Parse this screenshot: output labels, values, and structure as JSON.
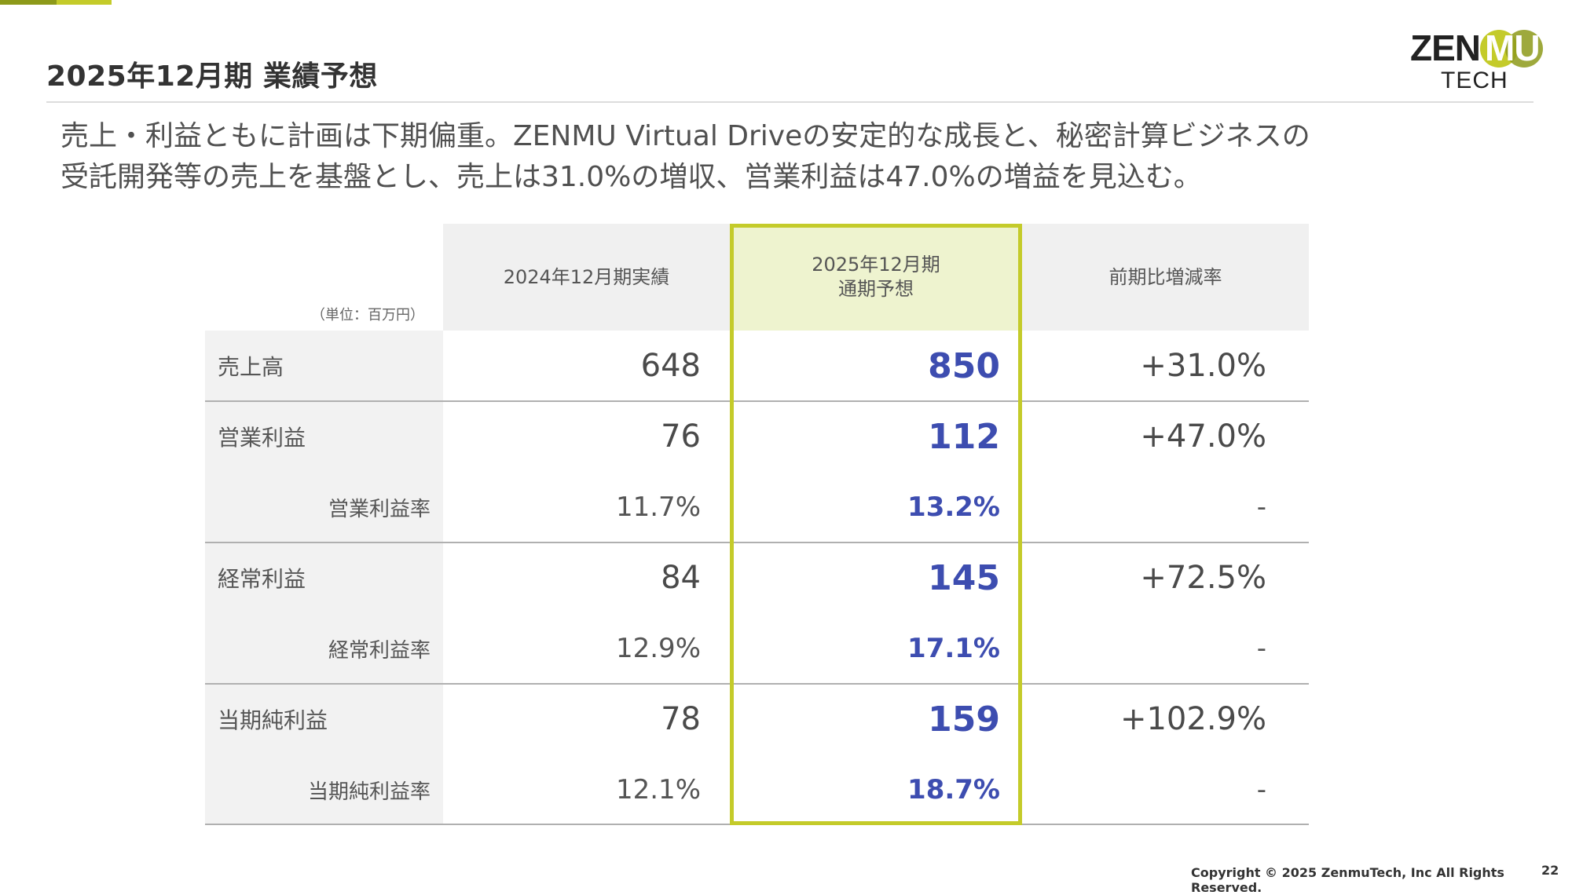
{
  "page": {
    "title": "2025年12月期 業績予想",
    "lead_line1": "売上・利益ともに計画は下期偏重。ZENMU Virtual Driveの安定的な成長と、秘密計算ビジネスの",
    "lead_line2": "受託開発等の売上を基盤とし、売上は31.0%の増収、営業利益は47.0%の増益を見込む。",
    "footer": "Copyright © 2025 ZenmuTech, Inc All Rights Reserved.",
    "page_number": "22"
  },
  "logo": {
    "line1_a": "ZEN",
    "line1_b": "MU",
    "line2": "TECH"
  },
  "table": {
    "unit": "（単位：百万円）",
    "headers": {
      "actual": "2024年12月期実績",
      "forecast_line1": "2025年12月期",
      "forecast_line2": "通期予想",
      "change": "前期比増減率"
    },
    "rows": [
      {
        "label": "売上高",
        "actual": "648",
        "forecast": "850",
        "change": "+31.0%"
      },
      {
        "label": "営業利益",
        "actual": "76",
        "forecast": "112",
        "change": "+47.0%"
      },
      {
        "label": "営業利益率",
        "actual": "11.7%",
        "forecast": "13.2%",
        "change": "-"
      },
      {
        "label": "経常利益",
        "actual": "84",
        "forecast": "145",
        "change": "+72.5%"
      },
      {
        "label": "経常利益率",
        "actual": "12.9%",
        "forecast": "17.1%",
        "change": "-"
      },
      {
        "label": "当期純利益",
        "actual": "78",
        "forecast": "159",
        "change": "+102.9%"
      },
      {
        "label": "当期純利益率",
        "actual": "12.1%",
        "forecast": "18.7%",
        "change": "-"
      }
    ]
  },
  "colors": {
    "accent_green": "#c4cb2a",
    "accent_dark_green": "#8d9a1a",
    "forecast_blue": "#3d4db0",
    "header_highlight": "#eef3cf"
  }
}
